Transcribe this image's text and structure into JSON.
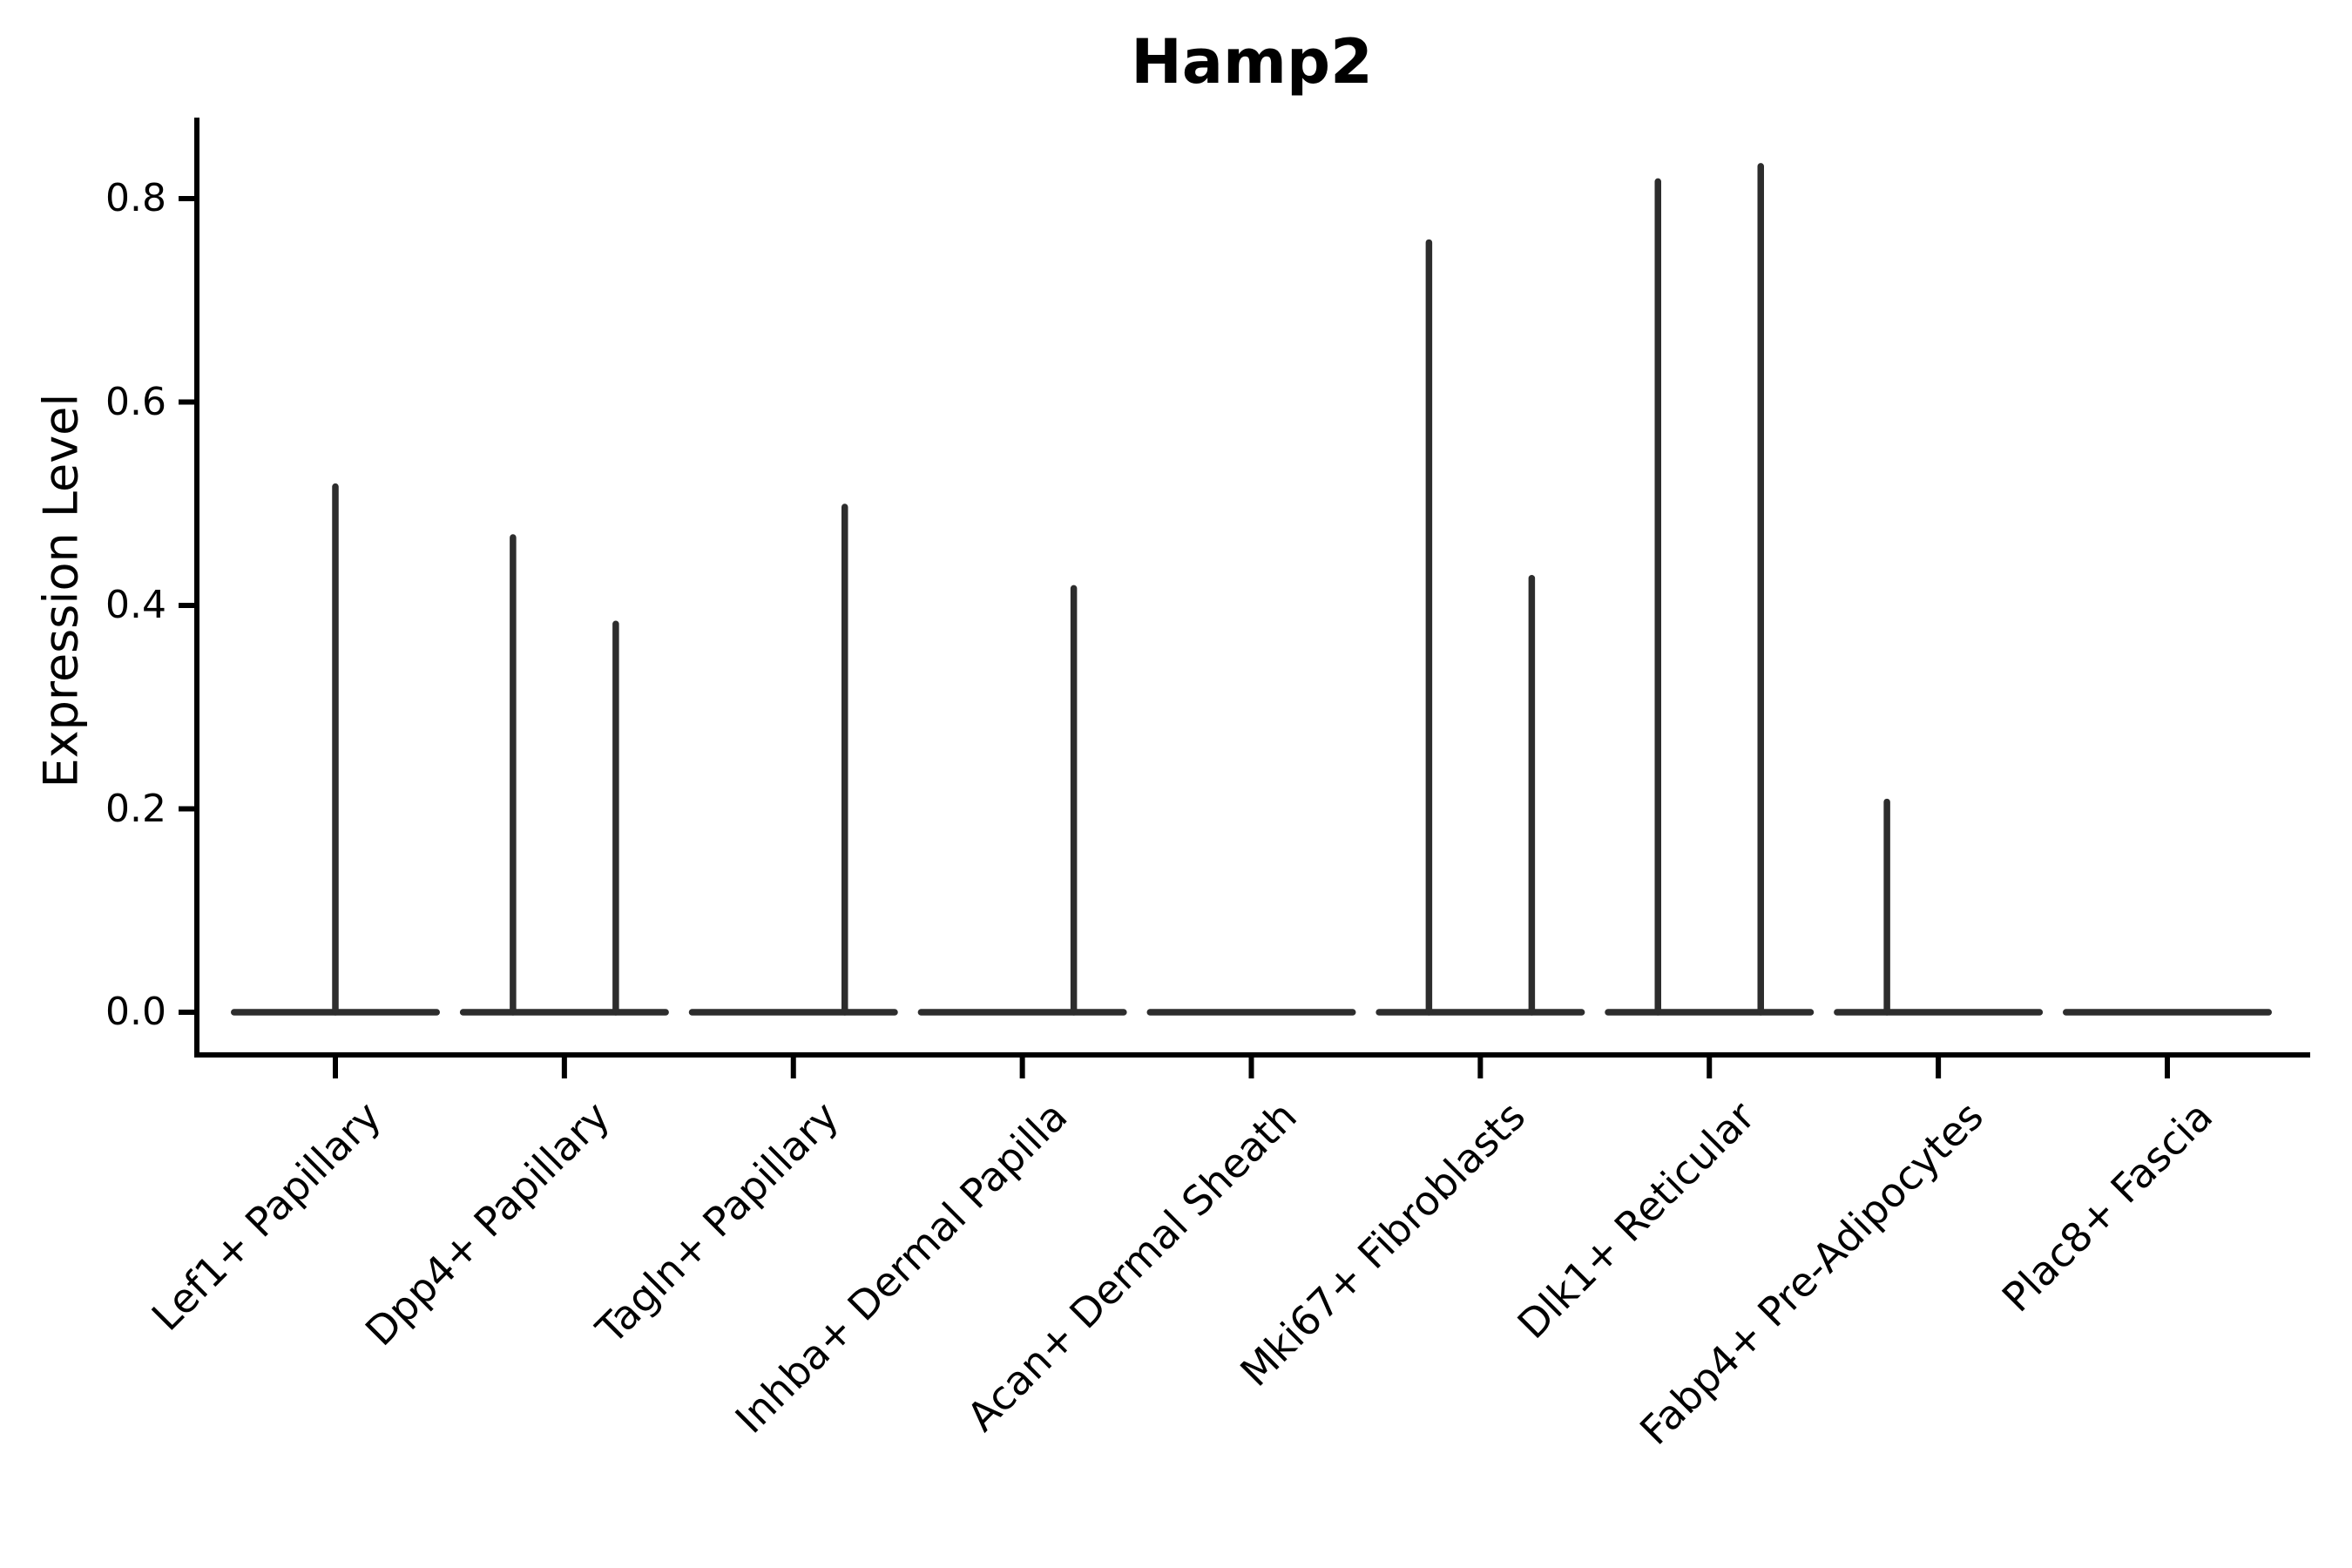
{
  "title": "Hamp2",
  "ylabel": "Expression Level",
  "chart_data": {
    "type": "violin",
    "title": "Hamp2",
    "xlabel": "",
    "ylabel": "Expression Level",
    "categories": [
      "Lef1+ Papillary",
      "Dpp4+ Papillary",
      "Tagln+ Papillary",
      "Inhba+ Dermal Papilla",
      "Acan+ Dermal Sheath",
      "Mki67+ Fibroblasts",
      "Dlk1+ Reticular",
      "Fabp4+ Pre-Adipocytes",
      "Plac8+ Fascia"
    ],
    "series": [
      {
        "category": "Lef1+ Papillary",
        "baseline": 0.0,
        "spikes": [
          {
            "pos": "center",
            "max": 0.52
          }
        ]
      },
      {
        "category": "Dpp4+ Papillary",
        "baseline": 0.0,
        "spikes": [
          {
            "pos": "left",
            "max": 0.47
          },
          {
            "pos": "right",
            "max": 0.385
          }
        ]
      },
      {
        "category": "Tagln+ Papillary",
        "baseline": 0.0,
        "spikes": [
          {
            "pos": "right",
            "max": 0.5
          }
        ]
      },
      {
        "category": "Inhba+ Dermal Papilla",
        "baseline": 0.0,
        "spikes": [
          {
            "pos": "right",
            "max": 0.42
          }
        ]
      },
      {
        "category": "Acan+ Dermal Sheath",
        "baseline": 0.0,
        "spikes": []
      },
      {
        "category": "Mki67+ Fibroblasts",
        "baseline": 0.0,
        "spikes": [
          {
            "pos": "left",
            "max": 0.76
          },
          {
            "pos": "right",
            "max": 0.43
          }
        ]
      },
      {
        "category": "Dlk1+ Reticular",
        "baseline": 0.0,
        "spikes": [
          {
            "pos": "left",
            "max": 0.82
          },
          {
            "pos": "right",
            "max": 0.835
          }
        ]
      },
      {
        "category": "Fabp4+ Pre-Adipocytes",
        "baseline": 0.0,
        "spikes": [
          {
            "pos": "left",
            "max": 0.21
          }
        ]
      },
      {
        "category": "Plac8+ Fascia",
        "baseline": 0.0,
        "spikes": []
      }
    ],
    "y_ticks": [
      0.0,
      0.2,
      0.4,
      0.6,
      0.8
    ],
    "y_tick_labels": [
      "0.0",
      "0.2",
      "0.4",
      "0.6",
      "0.8"
    ],
    "ylim": [
      -0.042,
      0.877
    ],
    "grid": false,
    "legend": "none",
    "colors": {
      "violin": "#2d2d2d",
      "axis": "#000000",
      "text": "#000000"
    }
  }
}
